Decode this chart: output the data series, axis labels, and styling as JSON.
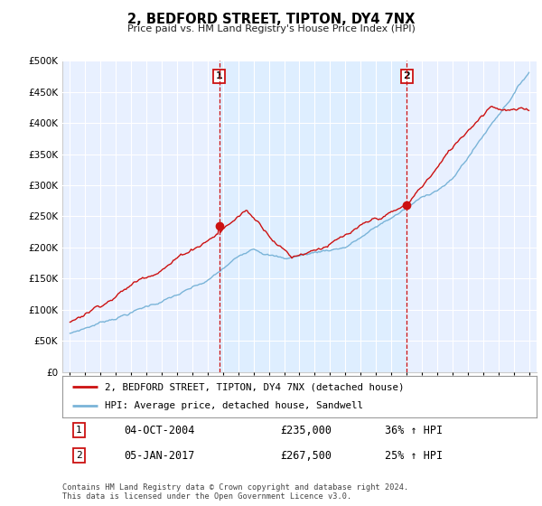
{
  "title": "2, BEDFORD STREET, TIPTON, DY4 7NX",
  "subtitle": "Price paid vs. HM Land Registry's House Price Index (HPI)",
  "ylim": [
    0,
    500000
  ],
  "yticks": [
    0,
    50000,
    100000,
    150000,
    200000,
    250000,
    300000,
    350000,
    400000,
    450000,
    500000
  ],
  "ytick_labels": [
    "£0",
    "£50K",
    "£100K",
    "£150K",
    "£200K",
    "£250K",
    "£300K",
    "£350K",
    "£400K",
    "£450K",
    "£500K"
  ],
  "hpi_color": "#7ab4d8",
  "price_color": "#cc1111",
  "sale1_date": "04-OCT-2004",
  "sale1_price": "£235,000",
  "sale1_hpi": "36% ↑ HPI",
  "sale2_date": "05-JAN-2017",
  "sale2_price": "£267,500",
  "sale2_hpi": "25% ↑ HPI",
  "legend_line1": "2, BEDFORD STREET, TIPTON, DY4 7NX (detached house)",
  "legend_line2": "HPI: Average price, detached house, Sandwell",
  "footer": "Contains HM Land Registry data © Crown copyright and database right 2024.\nThis data is licensed under the Open Government Licence v3.0.",
  "sale1_year": 2004.75,
  "sale1_value": 235000,
  "sale2_year": 2017.01,
  "sale2_value": 267500,
  "shade_color": "#ddeeff",
  "plot_bg": "#e8f0ff",
  "grid_color": "#ffffff",
  "marker_box_color": "#cc1111"
}
